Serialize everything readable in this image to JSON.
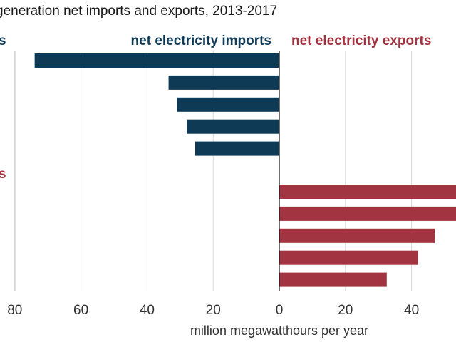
{
  "chart_data": {
    "type": "bar",
    "orientation": "horizontal",
    "title": "generation net imports and exports, 2013-2017",
    "xlabel": "million megawatthours per year",
    "x_ticks": [
      "80",
      "60",
      "40",
      "20",
      "0",
      "20",
      "40"
    ],
    "xlim": [
      -80,
      54
    ],
    "grid": true,
    "series": [
      {
        "name": "net electricity imports",
        "color": "#0f3a56",
        "values": [
          -74,
          -33.5,
          -31,
          -28,
          -25.5
        ]
      },
      {
        "name": "net electricity exports",
        "color": "#a23340",
        "values": [
          54,
          54,
          47,
          42,
          32.5
        ]
      }
    ],
    "group_labels": [
      {
        "text": "s",
        "color": "#0f3a56"
      },
      {
        "text": "s",
        "color": "#a23340"
      }
    ]
  }
}
